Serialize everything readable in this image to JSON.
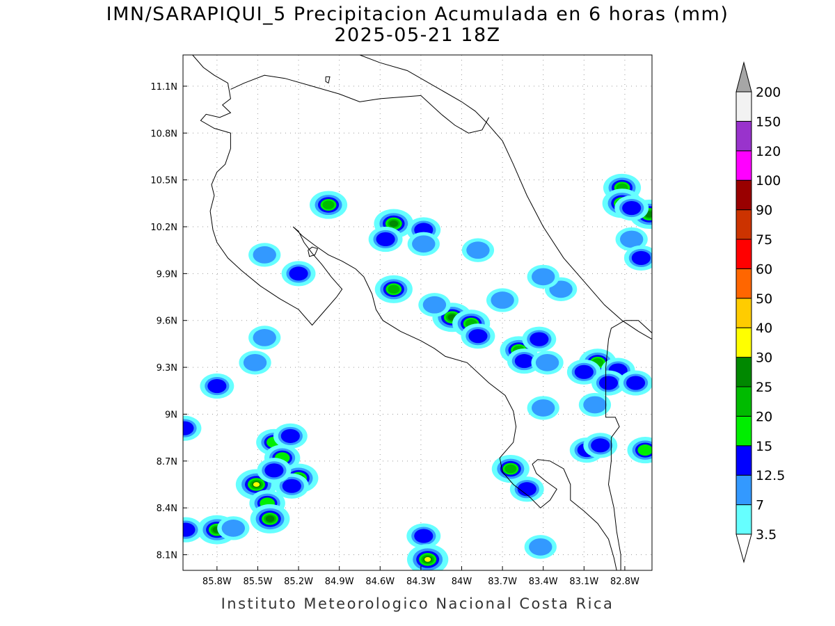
{
  "title": {
    "line1": "IMN/SARAPIQUI_5 Precipitacion Acumulada en 6 horas (mm)",
    "line2": "2025-05-21 18Z"
  },
  "footer": "Instituto Meteorologico Nacional Costa Rica",
  "map": {
    "lon_range": [
      -86.05,
      -82.6
    ],
    "lat_range": [
      8.0,
      11.3
    ],
    "lat_ticks": [
      {
        "value": 11.1,
        "label": "11.1N"
      },
      {
        "value": 10.8,
        "label": "10.8N"
      },
      {
        "value": 10.5,
        "label": "10.5N"
      },
      {
        "value": 10.2,
        "label": "10.2N"
      },
      {
        "value": 9.9,
        "label": "9.9N"
      },
      {
        "value": 9.6,
        "label": "9.6N"
      },
      {
        "value": 9.3,
        "label": "9.3N"
      },
      {
        "value": 9.0,
        "label": "9N"
      },
      {
        "value": 8.7,
        "label": "8.7N"
      },
      {
        "value": 8.4,
        "label": "8.4N"
      },
      {
        "value": 8.1,
        "label": "8.1N"
      }
    ],
    "lon_ticks": [
      {
        "value": -85.8,
        "label": "85.8W"
      },
      {
        "value": -85.5,
        "label": "85.5W"
      },
      {
        "value": -85.2,
        "label": "85.2W"
      },
      {
        "value": -84.9,
        "label": "84.9W"
      },
      {
        "value": -84.6,
        "label": "84.6W"
      },
      {
        "value": -84.3,
        "label": "84.3W"
      },
      {
        "value": -84.0,
        "label": "84W"
      },
      {
        "value": -83.7,
        "label": "83.7W"
      },
      {
        "value": -83.4,
        "label": "83.4W"
      },
      {
        "value": -83.1,
        "label": "83.1W"
      },
      {
        "value": -82.8,
        "label": "82.8W"
      }
    ],
    "grid": true,
    "coast": [
      [
        -85.98,
        11.3
      ],
      [
        -85.9,
        11.22
      ],
      [
        -85.82,
        11.17
      ],
      [
        -85.72,
        11.12
      ],
      [
        -85.7,
        11.02
      ],
      [
        -85.76,
        10.98
      ],
      [
        -85.7,
        10.93
      ],
      [
        -85.78,
        10.9
      ],
      [
        -85.88,
        10.92
      ],
      [
        -85.92,
        10.88
      ],
      [
        -85.82,
        10.83
      ],
      [
        -85.7,
        10.8
      ],
      [
        -85.7,
        10.7
      ],
      [
        -85.74,
        10.6
      ],
      [
        -85.8,
        10.55
      ],
      [
        -85.84,
        10.47
      ],
      [
        -85.82,
        10.4
      ],
      [
        -85.85,
        10.3
      ],
      [
        -85.83,
        10.18
      ],
      [
        -85.8,
        10.1
      ],
      [
        -85.72,
        10.0
      ],
      [
        -85.62,
        9.92
      ],
      [
        -85.48,
        9.82
      ],
      [
        -85.34,
        9.74
      ],
      [
        -85.2,
        9.67
      ],
      [
        -85.1,
        9.57
      ],
      [
        -85.02,
        9.65
      ],
      [
        -84.92,
        9.75
      ],
      [
        -84.88,
        9.8
      ],
      [
        -84.96,
        9.88
      ],
      [
        -85.03,
        9.96
      ],
      [
        -85.1,
        10.03
      ],
      [
        -85.16,
        10.1
      ],
      [
        -85.2,
        10.17
      ],
      [
        -85.24,
        10.2
      ],
      [
        -85.17,
        10.14
      ],
      [
        -85.08,
        10.08
      ],
      [
        -84.98,
        10.02
      ],
      [
        -84.88,
        9.98
      ],
      [
        -84.78,
        9.93
      ],
      [
        -84.72,
        9.88
      ],
      [
        -84.66,
        9.77
      ],
      [
        -84.63,
        9.67
      ],
      [
        -84.58,
        9.6
      ],
      [
        -84.45,
        9.53
      ],
      [
        -84.3,
        9.47
      ],
      [
        -84.2,
        9.42
      ],
      [
        -84.12,
        9.37
      ],
      [
        -83.96,
        9.33
      ],
      [
        -83.8,
        9.2
      ],
      [
        -83.68,
        9.12
      ],
      [
        -83.62,
        9.02
      ],
      [
        -83.6,
        8.92
      ],
      [
        -83.62,
        8.82
      ],
      [
        -83.72,
        8.72
      ],
      [
        -83.7,
        8.63
      ],
      [
        -83.62,
        8.55
      ],
      [
        -83.5,
        8.47
      ],
      [
        -83.42,
        8.4
      ],
      [
        -83.35,
        8.45
      ],
      [
        -83.3,
        8.52
      ],
      [
        -83.38,
        8.57
      ],
      [
        -83.45,
        8.62
      ],
      [
        -83.48,
        8.68
      ],
      [
        -83.44,
        8.71
      ],
      [
        -83.35,
        8.7
      ],
      [
        -83.25,
        8.65
      ],
      [
        -83.2,
        8.55
      ],
      [
        -83.2,
        8.45
      ],
      [
        -83.1,
        8.38
      ],
      [
        -83.0,
        8.3
      ],
      [
        -82.92,
        8.2
      ],
      [
        -82.88,
        8.08
      ],
      [
        -82.86,
        8.0
      ]
    ],
    "east_coast": [
      [
        -84.75,
        11.3
      ],
      [
        -84.6,
        11.25
      ],
      [
        -84.4,
        11.2
      ],
      [
        -84.2,
        11.1
      ],
      [
        -84.0,
        11.0
      ],
      [
        -83.9,
        10.94
      ],
      [
        -83.82,
        10.87
      ],
      [
        -83.7,
        10.75
      ],
      [
        -83.62,
        10.6
      ],
      [
        -83.52,
        10.4
      ],
      [
        -83.4,
        10.2
      ],
      [
        -83.25,
        10.0
      ],
      [
        -83.1,
        9.85
      ],
      [
        -82.95,
        9.7
      ],
      [
        -82.82,
        9.6
      ],
      [
        -82.7,
        9.53
      ],
      [
        -82.6,
        9.48
      ]
    ],
    "nicaragua_border": [
      [
        -85.7,
        11.08
      ],
      [
        -85.6,
        11.12
      ],
      [
        -85.45,
        11.17
      ],
      [
        -85.3,
        11.15
      ],
      [
        -85.1,
        11.1
      ],
      [
        -84.9,
        11.05
      ],
      [
        -84.75,
        11.0
      ],
      [
        -84.6,
        11.02
      ],
      [
        -84.45,
        11.03
      ],
      [
        -84.3,
        11.04
      ],
      [
        -84.15,
        10.92
      ],
      [
        -84.05,
        10.85
      ],
      [
        -83.95,
        10.8
      ],
      [
        -83.85,
        10.82
      ],
      [
        -83.8,
        10.9
      ]
    ],
    "panama_border": [
      [
        -82.6,
        9.52
      ],
      [
        -82.7,
        9.6
      ],
      [
        -82.8,
        9.6
      ],
      [
        -82.9,
        9.55
      ],
      [
        -82.92,
        9.48
      ],
      [
        -82.94,
        9.3
      ],
      [
        -82.94,
        9.1
      ],
      [
        -82.94,
        8.98
      ],
      [
        -82.87,
        8.98
      ],
      [
        -82.84,
        8.92
      ],
      [
        -82.9,
        8.85
      ],
      [
        -82.9,
        8.7
      ],
      [
        -82.92,
        8.55
      ],
      [
        -82.88,
        8.4
      ],
      [
        -82.86,
        8.25
      ],
      [
        -82.83,
        8.1
      ],
      [
        -82.83,
        8.0
      ]
    ],
    "islands": [
      [
        [
          -85.13,
          10.05
        ],
        [
          -85.1,
          10.07
        ],
        [
          -85.06,
          10.06
        ],
        [
          -85.08,
          10.02
        ],
        [
          -85.12,
          10.01
        ]
      ],
      [
        [
          -85.0,
          11.16
        ],
        [
          -84.97,
          11.16
        ],
        [
          -84.98,
          11.12
        ],
        [
          -85.0,
          11.13
        ]
      ]
    ]
  },
  "legend": {
    "levels": [
      "3.5",
      "7",
      "12.5",
      "15",
      "20",
      "25",
      "30",
      "40",
      "50",
      "60",
      "75",
      "90",
      "100",
      "120",
      "150",
      "200"
    ],
    "colors": [
      "#ffffff",
      "#66ffff",
      "#3399ff",
      "#0000ff",
      "#00ee00",
      "#00bb00",
      "#008800",
      "#ffff00",
      "#ffcc00",
      "#ff6600",
      "#ff0000",
      "#cc3300",
      "#990000",
      "#ff00ff",
      "#9933cc",
      "#f2f2f2",
      "#a6a6a6"
    ],
    "units": "mm"
  },
  "precip_cells": [
    {
      "lon": -84.98,
      "lat": 10.34,
      "level": 5
    },
    {
      "lon": -84.5,
      "lat": 10.22,
      "level": 6
    },
    {
      "lon": -84.56,
      "lat": 10.12,
      "level": 3
    },
    {
      "lon": -84.28,
      "lat": 10.18,
      "level": 3
    },
    {
      "lon": -84.28,
      "lat": 10.09,
      "level": 2
    },
    {
      "lon": -85.45,
      "lat": 10.02,
      "level": 2
    },
    {
      "lon": -85.2,
      "lat": 9.9,
      "level": 3
    },
    {
      "lon": -84.5,
      "lat": 9.8,
      "level": 5
    },
    {
      "lon": -84.07,
      "lat": 9.62,
      "level": 6
    },
    {
      "lon": -83.93,
      "lat": 9.58,
      "level": 5
    },
    {
      "lon": -83.88,
      "lat": 9.5,
      "level": 3
    },
    {
      "lon": -83.58,
      "lat": 9.41,
      "level": 5
    },
    {
      "lon": -83.54,
      "lat": 9.34,
      "level": 3
    },
    {
      "lon": -83.37,
      "lat": 9.33,
      "level": 2
    },
    {
      "lon": -85.45,
      "lat": 9.49,
      "level": 2
    },
    {
      "lon": -85.8,
      "lat": 9.18,
      "level": 3
    },
    {
      "lon": -85.38,
      "lat": 8.82,
      "level": 4
    },
    {
      "lon": -85.32,
      "lat": 8.72,
      "level": 4
    },
    {
      "lon": -85.26,
      "lat": 8.86,
      "level": 3
    },
    {
      "lon": -85.51,
      "lat": 8.55,
      "level": 7
    },
    {
      "lon": -85.2,
      "lat": 8.59,
      "level": 6
    },
    {
      "lon": -85.25,
      "lat": 8.54,
      "level": 3
    },
    {
      "lon": -85.38,
      "lat": 8.64,
      "level": 3
    },
    {
      "lon": -85.43,
      "lat": 8.43,
      "level": 4
    },
    {
      "lon": -85.41,
      "lat": 8.33,
      "level": 6
    },
    {
      "lon": -85.8,
      "lat": 8.26,
      "level": 6
    },
    {
      "lon": -86.03,
      "lat": 8.26,
      "level": 3
    },
    {
      "lon": -85.68,
      "lat": 8.27,
      "level": 2
    },
    {
      "lon": -84.28,
      "lat": 8.22,
      "level": 3
    },
    {
      "lon": -84.25,
      "lat": 8.07,
      "level": 7
    },
    {
      "lon": -82.82,
      "lat": 10.45,
      "level": 5
    },
    {
      "lon": -82.82,
      "lat": 10.35,
      "level": 6
    },
    {
      "lon": -82.62,
      "lat": 10.28,
      "level": 6
    },
    {
      "lon": -82.75,
      "lat": 10.32,
      "level": 3
    },
    {
      "lon": -82.75,
      "lat": 10.12,
      "level": 2
    },
    {
      "lon": -82.68,
      "lat": 10.0,
      "level": 3
    },
    {
      "lon": -83.64,
      "lat": 8.65,
      "level": 5
    },
    {
      "lon": -83.52,
      "lat": 8.52,
      "level": 3
    },
    {
      "lon": -83.0,
      "lat": 9.33,
      "level": 5
    },
    {
      "lon": -83.1,
      "lat": 9.27,
      "level": 3
    },
    {
      "lon": -82.85,
      "lat": 9.28,
      "level": 3
    },
    {
      "lon": -82.92,
      "lat": 9.2,
      "level": 3
    },
    {
      "lon": -82.72,
      "lat": 9.2,
      "level": 3
    },
    {
      "lon": -82.65,
      "lat": 8.77,
      "level": 4
    },
    {
      "lon": -83.08,
      "lat": 8.77,
      "level": 3
    },
    {
      "lon": -82.98,
      "lat": 8.8,
      "level": 3
    },
    {
      "lon": -83.43,
      "lat": 9.48,
      "level": 3
    },
    {
      "lon": -83.7,
      "lat": 9.73,
      "level": 2
    },
    {
      "lon": -83.88,
      "lat": 10.05,
      "level": 2
    },
    {
      "lon": -83.42,
      "lat": 8.15,
      "level": 2
    },
    {
      "lon": -83.27,
      "lat": 9.8,
      "level": 2
    },
    {
      "lon": -83.4,
      "lat": 9.88,
      "level": 2
    },
    {
      "lon": -84.2,
      "lat": 9.7,
      "level": 2
    },
    {
      "lon": -86.04,
      "lat": 8.91,
      "level": 3
    },
    {
      "lon": -85.52,
      "lat": 9.33,
      "level": 2
    },
    {
      "lon": -83.02,
      "lat": 9.06,
      "level": 2
    },
    {
      "lon": -83.4,
      "lat": 9.04,
      "level": 2
    }
  ]
}
